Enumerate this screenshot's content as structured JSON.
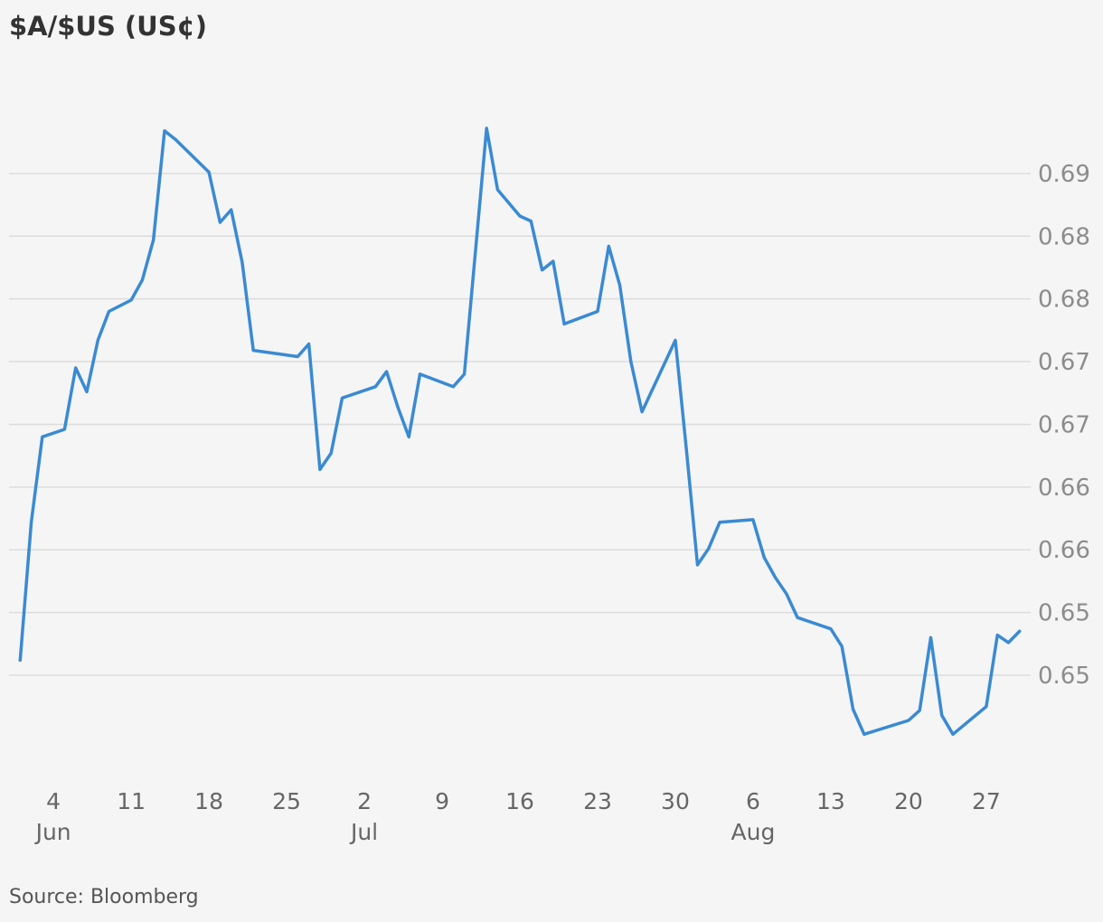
{
  "chart_data": {
    "type": "line",
    "title": "$A/$US (US¢)",
    "source": "Source: Bloomberg",
    "xlabel": "",
    "ylabel": "",
    "grid": true,
    "legend": "none",
    "line_color": "#3a8ad3",
    "y_axis_side": "right",
    "ylim": [
      0.6415,
      0.6995
    ],
    "y_ticks": [
      {
        "value": 0.65,
        "label": "0.65"
      },
      {
        "value": 0.655,
        "label": "0.65"
      },
      {
        "value": 0.66,
        "label": "0.66"
      },
      {
        "value": 0.665,
        "label": "0.66"
      },
      {
        "value": 0.67,
        "label": "0.67"
      },
      {
        "value": 0.675,
        "label": "0.67"
      },
      {
        "value": 0.68,
        "label": "0.68"
      },
      {
        "value": 0.685,
        "label": "0.68"
      },
      {
        "value": 0.69,
        "label": "0.69"
      }
    ],
    "xlim": [
      "2019-05-31",
      "2019-08-31"
    ],
    "x_ticks": [
      {
        "date": "2019-06-04",
        "label": "4",
        "month": "Jun"
      },
      {
        "date": "2019-06-11",
        "label": "11",
        "month": ""
      },
      {
        "date": "2019-06-18",
        "label": "18",
        "month": ""
      },
      {
        "date": "2019-06-25",
        "label": "25",
        "month": ""
      },
      {
        "date": "2019-07-02",
        "label": "2",
        "month": "Jul"
      },
      {
        "date": "2019-07-09",
        "label": "9",
        "month": ""
      },
      {
        "date": "2019-07-16",
        "label": "16",
        "month": ""
      },
      {
        "date": "2019-07-23",
        "label": "23",
        "month": ""
      },
      {
        "date": "2019-07-30",
        "label": "30",
        "month": ""
      },
      {
        "date": "2019-08-06",
        "label": "6",
        "month": "Aug"
      },
      {
        "date": "2019-08-13",
        "label": "13",
        "month": ""
      },
      {
        "date": "2019-08-20",
        "label": "20",
        "month": ""
      },
      {
        "date": "2019-08-27",
        "label": "27",
        "month": ""
      }
    ],
    "series": [
      {
        "x": [
          "2019-06-01",
          "2019-06-02",
          "2019-06-03",
          "2019-06-05",
          "2019-06-06",
          "2019-06-07",
          "2019-06-08",
          "2019-06-09",
          "2019-06-11",
          "2019-06-12",
          "2019-06-13",
          "2019-06-14",
          "2019-06-15",
          "2019-06-18",
          "2019-06-19",
          "2019-06-20",
          "2019-06-21",
          "2019-06-22",
          "2019-06-26",
          "2019-06-27",
          "2019-06-28",
          "2019-06-29",
          "2019-06-30",
          "2019-07-03",
          "2019-07-04",
          "2019-07-05",
          "2019-07-06",
          "2019-07-07",
          "2019-07-10",
          "2019-07-11",
          "2019-07-13",
          "2019-07-14",
          "2019-07-16",
          "2019-07-17",
          "2019-07-18",
          "2019-07-19",
          "2019-07-20",
          "2019-07-23",
          "2019-07-24",
          "2019-07-25",
          "2019-07-26",
          "2019-07-27",
          "2019-07-30",
          "2019-07-31",
          "2019-08-01",
          "2019-08-02",
          "2019-08-03",
          "2019-08-06",
          "2019-08-07",
          "2019-08-08",
          "2019-08-09",
          "2019-08-10",
          "2019-08-13",
          "2019-08-14",
          "2019-08-15",
          "2019-08-16",
          "2019-08-20",
          "2019-08-21",
          "2019-08-22",
          "2019-08-23",
          "2019-08-24",
          "2019-08-27",
          "2019-08-28",
          "2019-08-29",
          "2019-08-30"
        ],
        "y": [
          0.6512,
          0.6622,
          0.669,
          0.6696,
          0.6745,
          0.6726,
          0.6767,
          0.679,
          0.6799,
          0.6815,
          0.6847,
          0.6934,
          0.6927,
          0.6901,
          0.6861,
          0.6871,
          0.6829,
          0.6759,
          0.6754,
          0.6764,
          0.6664,
          0.6677,
          0.6721,
          0.673,
          0.6742,
          0.6714,
          0.669,
          0.674,
          0.673,
          0.674,
          0.6936,
          0.6887,
          0.6866,
          0.6862,
          0.6823,
          0.683,
          0.678,
          0.679,
          0.6842,
          0.6811,
          0.675,
          0.671,
          0.6767,
          0.668,
          0.6588,
          0.6601,
          0.6622,
          0.6624,
          0.6594,
          0.6578,
          0.6565,
          0.6546,
          0.6537,
          0.6523,
          0.6473,
          0.6453,
          0.6464,
          0.6472,
          0.653,
          0.6468,
          0.6453,
          0.6475,
          0.6532,
          0.6526,
          0.6535
        ]
      }
    ]
  }
}
